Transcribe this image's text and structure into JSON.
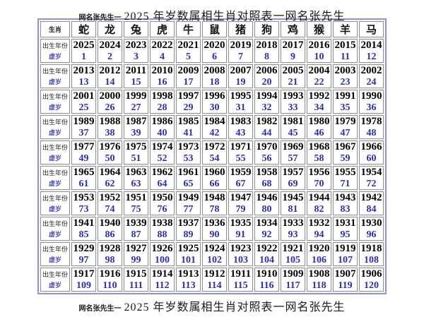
{
  "header": {
    "prefix": "网名张先生一",
    "main": "2025 年岁数属相生肖对照表一网名张先生"
  },
  "footer": {
    "prefix": "网名张先生一",
    "main": "2025 年岁数属相生肖对照表一网名张先生"
  },
  "chart_data": {
    "type": "table",
    "title": "2025 年岁数属相生肖对照表一网名张先生",
    "corner_label": "生肖",
    "row_label_year": "出生年份",
    "row_label_age": "虚岁",
    "zodiac_columns": [
      "蛇",
      "龙",
      "兔",
      "虎",
      "牛",
      "鼠",
      "猪",
      "狗",
      "鸡",
      "猴",
      "羊",
      "马"
    ],
    "rows": [
      {
        "years": [
          2025,
          2024,
          2023,
          2022,
          2021,
          2020,
          2019,
          2018,
          2017,
          2016,
          2015,
          2014
        ],
        "ages": [
          1,
          2,
          3,
          4,
          5,
          6,
          7,
          8,
          9,
          10,
          11,
          12
        ]
      },
      {
        "years": [
          2013,
          2012,
          2011,
          2010,
          2009,
          2008,
          2007,
          2006,
          2005,
          2004,
          2003,
          2002
        ],
        "ages": [
          13,
          14,
          15,
          16,
          17,
          18,
          19,
          20,
          21,
          22,
          23,
          24
        ]
      },
      {
        "years": [
          2001,
          2000,
          1999,
          1998,
          1997,
          1996,
          1995,
          1994,
          1993,
          1992,
          1991,
          1990
        ],
        "ages": [
          25,
          26,
          27,
          28,
          29,
          30,
          31,
          32,
          33,
          34,
          35,
          36
        ]
      },
      {
        "years": [
          1989,
          1988,
          1987,
          1986,
          1985,
          1984,
          1983,
          1982,
          1981,
          1980,
          1979,
          1978
        ],
        "ages": [
          37,
          38,
          39,
          40,
          41,
          42,
          43,
          44,
          45,
          46,
          47,
          48
        ]
      },
      {
        "years": [
          1977,
          1976,
          1975,
          1974,
          1973,
          1972,
          1971,
          1970,
          1969,
          1968,
          1967,
          1966
        ],
        "ages": [
          49,
          50,
          51,
          52,
          53,
          54,
          55,
          56,
          57,
          58,
          59,
          60
        ]
      },
      {
        "years": [
          1965,
          1964,
          1963,
          1962,
          1961,
          1960,
          1959,
          1958,
          1957,
          1956,
          1955,
          1954
        ],
        "ages": [
          61,
          62,
          63,
          64,
          65,
          66,
          67,
          68,
          69,
          70,
          71,
          72
        ]
      },
      {
        "years": [
          1953,
          1952,
          1951,
          1950,
          1949,
          1948,
          1947,
          1946,
          1945,
          1944,
          1943,
          1942
        ],
        "ages": [
          73,
          74,
          75,
          76,
          77,
          78,
          79,
          80,
          81,
          82,
          83,
          84
        ]
      },
      {
        "years": [
          1941,
          1940,
          1939,
          1938,
          1937,
          1936,
          1935,
          1934,
          1933,
          1932,
          1931,
          1930
        ],
        "ages": [
          85,
          86,
          87,
          88,
          89,
          90,
          91,
          92,
          93,
          94,
          95,
          96
        ]
      },
      {
        "years": [
          1929,
          1928,
          1927,
          1926,
          1925,
          1924,
          1923,
          1922,
          1921,
          1920,
          1919,
          1918
        ],
        "ages": [
          97,
          98,
          99,
          100,
          101,
          102,
          103,
          104,
          105,
          106,
          107,
          108
        ]
      },
      {
        "years": [
          1917,
          1916,
          1915,
          1914,
          1913,
          1912,
          1911,
          1910,
          1909,
          1908,
          1907,
          1906
        ],
        "ages": [
          109,
          110,
          111,
          112,
          113,
          114,
          115,
          116,
          117,
          118,
          119,
          120
        ]
      }
    ]
  },
  "colors": {
    "year_text": "#000000",
    "age_text": "#2d2db4",
    "label_age_text": "#5353bb",
    "cell_border": "#8f8f8f",
    "outer_border": "#9494c8",
    "background": "#ffffff"
  }
}
